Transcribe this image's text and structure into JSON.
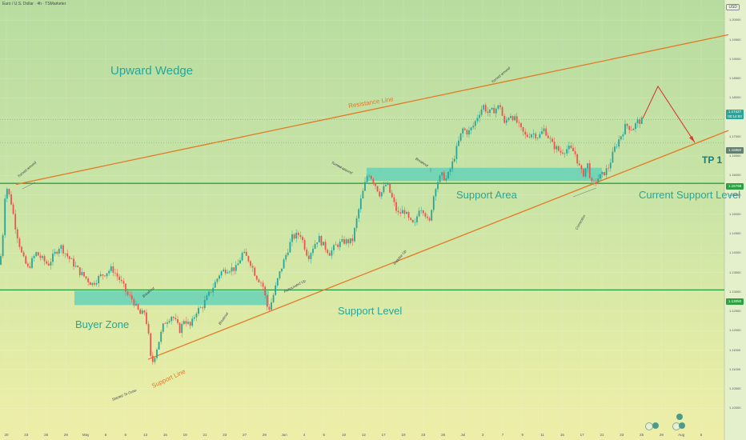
{
  "header": {
    "symbol_title": "Euro / U.S. Dollar · 4h · TSMarketer",
    "currency_badge": "USD"
  },
  "labels": {
    "upward_wedge": "Upward Wedge",
    "support_area": "Support Area",
    "current_support_level": "Current Support Level",
    "buyer_zone": "Buyer Zone",
    "support_level": "Support Level",
    "tp1": "TP 1",
    "resistance_line": "Resistance Line",
    "support_line": "Support Line"
  },
  "annotations": {
    "turned_around_1": "Turned around",
    "turned_around_2": "Turned around",
    "turned_around_3": "Turned around",
    "breakout_1": "Breakout",
    "breakout_2": "Breakout",
    "breakout_3": "Breakout",
    "rebounded_up": "Rebounded Up",
    "impulse_up": "Impulse Up",
    "correction": "Correction",
    "started_to_grow": "Started To Grow"
  },
  "price_tags": {
    "current": "1.17427",
    "current_sub": "00:14:00",
    "tp": "1.16850",
    "support_area_level": "1.15798",
    "support_level": "1.13050"
  },
  "colors": {
    "accent": "#26a69a",
    "zone_fill": "#5fd1b8",
    "trendline": "#e37a28",
    "hline": "#2ea043",
    "bull": "#26a69a",
    "bear": "#ef5350",
    "projection": "#d63a32"
  },
  "chart_data": {
    "type": "candlestick",
    "title": "Euro / U.S. Dollar · 4h · TSMarketer",
    "y_axis_ticks": [
      "1.20000",
      "1.19500",
      "1.19000",
      "1.18500",
      "1.18000",
      "1.17500",
      "1.17000",
      "1.16500",
      "1.16000",
      "1.15500",
      "1.15000",
      "1.14500",
      "1.14000",
      "1.13500",
      "1.13000",
      "1.12500",
      "1.12000",
      "1.11500",
      "1.11000",
      "1.10500",
      "1.10000"
    ],
    "ylim": [
      1.098,
      1.204
    ],
    "x_axis_ticks": [
      "20",
      "23",
      "25",
      "29",
      "May",
      "6",
      "8",
      "13",
      "15",
      "19",
      "21",
      "23",
      "27",
      "29",
      "Jun",
      "4",
      "6",
      "10",
      "12",
      "17",
      "19",
      "23",
      "26",
      "Jul",
      "3",
      "7",
      "9",
      "11",
      "15",
      "17",
      "21",
      "23",
      "25",
      "29",
      "Aug",
      "5"
    ],
    "price_path": [
      [
        0,
        1.137
      ],
      [
        4,
        1.146
      ],
      [
        7,
        1.158
      ],
      [
        14,
        1.153
      ],
      [
        20,
        1.146
      ],
      [
        28,
        1.139
      ],
      [
        35,
        1.136
      ],
      [
        45,
        1.14
      ],
      [
        60,
        1.137
      ],
      [
        75,
        1.142
      ],
      [
        85,
        1.139
      ],
      [
        100,
        1.135
      ],
      [
        115,
        1.132
      ],
      [
        125,
        1.134
      ],
      [
        140,
        1.136
      ],
      [
        150,
        1.133
      ],
      [
        160,
        1.129
      ],
      [
        166,
        1.128
      ],
      [
        170,
        1.126
      ],
      [
        176,
        1.124
      ],
      [
        181,
        1.125
      ],
      [
        186,
        1.118
      ],
      [
        188,
        1.113
      ],
      [
        191,
        1.112
      ],
      [
        198,
        1.117
      ],
      [
        205,
        1.122
      ],
      [
        215,
        1.124
      ],
      [
        225,
        1.12
      ],
      [
        230,
        1.123
      ],
      [
        238,
        1.121
      ],
      [
        245,
        1.125
      ],
      [
        252,
        1.126
      ],
      [
        260,
        1.129
      ],
      [
        268,
        1.132
      ],
      [
        275,
        1.135
      ],
      [
        285,
        1.136
      ],
      [
        295,
        1.136
      ],
      [
        303,
        1.14
      ],
      [
        312,
        1.138
      ],
      [
        320,
        1.134
      ],
      [
        328,
        1.132
      ],
      [
        335,
        1.125
      ],
      [
        340,
        1.128
      ],
      [
        348,
        1.134
      ],
      [
        358,
        1.14
      ],
      [
        365,
        1.144
      ],
      [
        375,
        1.145
      ],
      [
        385,
        1.139
      ],
      [
        392,
        1.142
      ],
      [
        398,
        1.144
      ],
      [
        404,
        1.142
      ],
      [
        412,
        1.14
      ],
      [
        420,
        1.142
      ],
      [
        430,
        1.143
      ],
      [
        440,
        1.143
      ],
      [
        445,
        1.148
      ],
      [
        450,
        1.153
      ],
      [
        455,
        1.157
      ],
      [
        460,
        1.161
      ],
      [
        468,
        1.158
      ],
      [
        475,
        1.155
      ],
      [
        483,
        1.158
      ],
      [
        490,
        1.154
      ],
      [
        497,
        1.15
      ],
      [
        505,
        1.151
      ],
      [
        512,
        1.148
      ],
      [
        518,
        1.147
      ],
      [
        524,
        1.152
      ],
      [
        530,
        1.151
      ],
      [
        536,
        1.147
      ],
      [
        540,
        1.153
      ],
      [
        545,
        1.158
      ],
      [
        552,
        1.16
      ],
      [
        558,
        1.159
      ],
      [
        565,
        1.163
      ],
      [
        572,
        1.168
      ],
      [
        578,
        1.172
      ],
      [
        585,
        1.171
      ],
      [
        592,
        1.173
      ],
      [
        598,
        1.176
      ],
      [
        604,
        1.178
      ],
      [
        610,
        1.176
      ],
      [
        618,
        1.177
      ],
      [
        625,
        1.178
      ],
      [
        630,
        1.173
      ],
      [
        637,
        1.176
      ],
      [
        645,
        1.174
      ],
      [
        650,
        1.172
      ],
      [
        657,
        1.17
      ],
      [
        665,
        1.171
      ],
      [
        673,
        1.17
      ],
      [
        680,
        1.172
      ],
      [
        690,
        1.168
      ],
      [
        700,
        1.166
      ],
      [
        710,
        1.167
      ],
      [
        718,
        1.166
      ],
      [
        724,
        1.162
      ],
      [
        728,
        1.16
      ],
      [
        734,
        1.163
      ],
      [
        740,
        1.157
      ],
      [
        745,
        1.159
      ],
      [
        752,
        1.16
      ],
      [
        760,
        1.162
      ],
      [
        768,
        1.167
      ],
      [
        775,
        1.17
      ],
      [
        782,
        1.173
      ],
      [
        790,
        1.172
      ],
      [
        797,
        1.174
      ],
      [
        803,
        1.174
      ]
    ],
    "zones": [
      {
        "name": "Buyer Zone",
        "from": 1.1266,
        "to": 1.1302
      },
      {
        "name": "Support Area",
        "from": 1.1586,
        "to": 1.162
      }
    ],
    "levels": [
      {
        "name": "Current Support Level",
        "value": 1.15798
      },
      {
        "name": "Support Level",
        "value": 1.1305
      }
    ],
    "trendlines": [
      {
        "name": "Resistance Line",
        "x1": 20,
        "y1": 1.1577,
        "x2": 910,
        "y2": 1.1963
      },
      {
        "name": "Support Line",
        "x1": 185,
        "y1": 1.1126,
        "x2": 910,
        "y2": 1.1716
      }
    ],
    "projection": [
      [
        803,
        1.1747
      ],
      [
        822,
        1.183
      ],
      [
        868,
        1.1685
      ]
    ],
    "tp": 1.1685,
    "grid": true,
    "legend": "none"
  }
}
